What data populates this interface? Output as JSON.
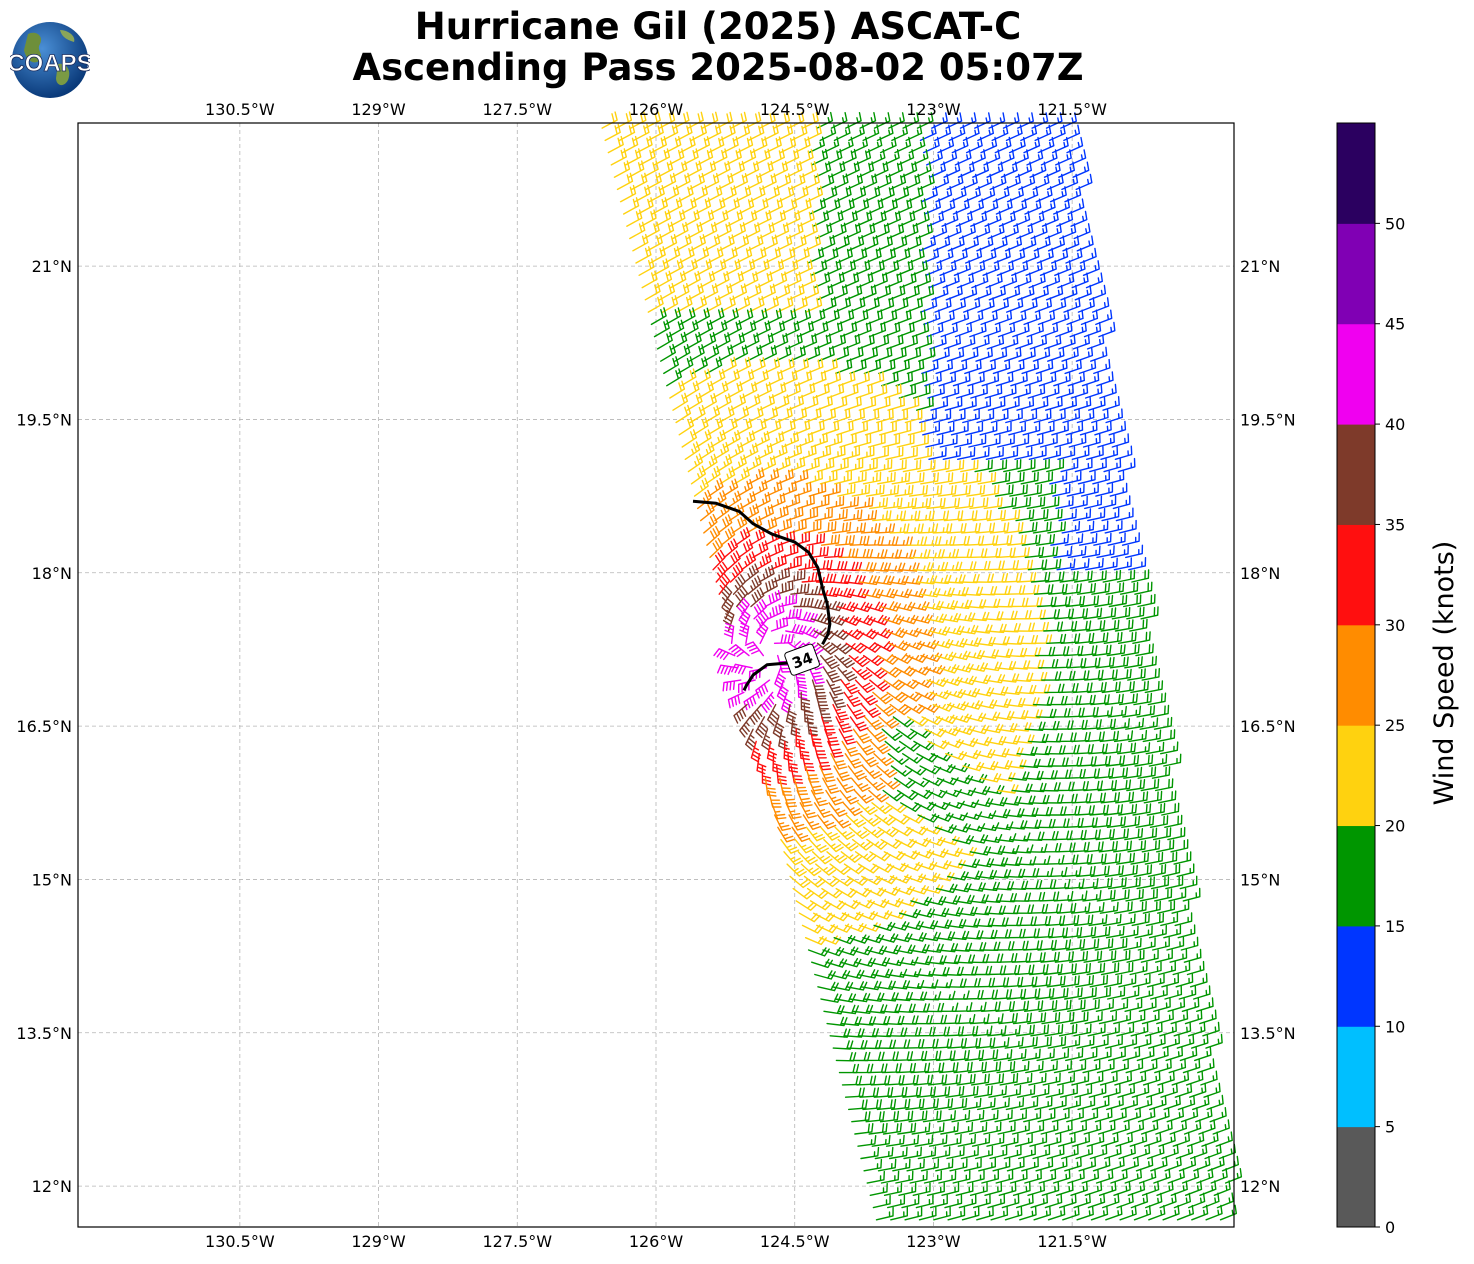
{
  "title": {
    "line1": "Hurricane Gil (2025) ASCAT-C",
    "line2": "Ascending Pass 2025-08-02 05:07Z"
  },
  "logo": {
    "text": "COAPS",
    "icon": "globe-logo-icon"
  },
  "map": {
    "lon_range": [
      -132.25,
      -119.75
    ],
    "lat_range": [
      11.6,
      22.4
    ],
    "lon_ticks": [
      {
        "value": -130.5,
        "label": "130.5°W"
      },
      {
        "value": -129.0,
        "label": "129°W"
      },
      {
        "value": -127.5,
        "label": "127.5°W"
      },
      {
        "value": -126.0,
        "label": "126°W"
      },
      {
        "value": -124.5,
        "label": "124.5°W"
      },
      {
        "value": -123.0,
        "label": "123°W"
      },
      {
        "value": -121.5,
        "label": "121.5°W"
      }
    ],
    "lat_ticks": [
      {
        "value": 21.0,
        "label": "21°N"
      },
      {
        "value": 19.5,
        "label": "19.5°N"
      },
      {
        "value": 18.0,
        "label": "18°N"
      },
      {
        "value": 16.5,
        "label": "16.5°N"
      },
      {
        "value": 15.0,
        "label": "15°N"
      },
      {
        "value": 13.5,
        "label": "13.5°N"
      },
      {
        "value": 12.0,
        "label": "12°N"
      }
    ],
    "gridlines": true,
    "storm_center": {
      "lon": -124.8,
      "lat": 17.2
    },
    "swath": {
      "left_edge_top_lon": -126.7,
      "left_edge_bottom_lon": -123.7,
      "right_edge_top_lon": -121.6,
      "right_edge_bottom_lon": -119.8
    },
    "contour": {
      "label": "34",
      "label_at": {
        "lon": -124.42,
        "lat": 17.15
      },
      "points": [
        {
          "lon": -125.6,
          "lat": 18.7
        },
        {
          "lon": -125.35,
          "lat": 18.68
        },
        {
          "lon": -125.1,
          "lat": 18.6
        },
        {
          "lon": -124.95,
          "lat": 18.48
        },
        {
          "lon": -124.75,
          "lat": 18.38
        },
        {
          "lon": -124.5,
          "lat": 18.3
        },
        {
          "lon": -124.35,
          "lat": 18.2
        },
        {
          "lon": -124.25,
          "lat": 18.05
        },
        {
          "lon": -124.2,
          "lat": 17.85
        },
        {
          "lon": -124.15,
          "lat": 17.7
        },
        {
          "lon": -124.12,
          "lat": 17.5
        },
        {
          "lon": -124.14,
          "lat": 17.4
        },
        {
          "lon": -124.2,
          "lat": 17.3
        }
      ],
      "points_lower": [
        {
          "lon": -124.55,
          "lat": 17.12
        },
        {
          "lon": -124.8,
          "lat": 17.1
        },
        {
          "lon": -124.95,
          "lat": 17.0
        },
        {
          "lon": -125.02,
          "lat": 16.9
        },
        {
          "lon": -125.05,
          "lat": 16.85
        }
      ]
    }
  },
  "colorbar": {
    "label": "Wind Speed (knots)",
    "bins": [
      {
        "min": 0,
        "max": 5,
        "color": "#595959"
      },
      {
        "min": 5,
        "max": 10,
        "color": "#00bfff"
      },
      {
        "min": 10,
        "max": 15,
        "color": "#0036ff"
      },
      {
        "min": 15,
        "max": 20,
        "color": "#009600"
      },
      {
        "min": 20,
        "max": 25,
        "color": "#ffd20f"
      },
      {
        "min": 25,
        "max": 30,
        "color": "#ff8c00"
      },
      {
        "min": 30,
        "max": 35,
        "color": "#ff0f0f"
      },
      {
        "min": 35,
        "max": 40,
        "color": "#7e3a2a"
      },
      {
        "min": 40,
        "max": 45,
        "color": "#f000f0"
      },
      {
        "min": 45,
        "max": 50,
        "color": "#8000b4"
      },
      {
        "min": 50,
        "max": 55,
        "color": "#2b0060"
      }
    ],
    "ticks": [
      {
        "value": 0,
        "label": "0"
      },
      {
        "value": 5,
        "label": "5"
      },
      {
        "value": 10,
        "label": "10"
      },
      {
        "value": 15,
        "label": "15"
      },
      {
        "value": 20,
        "label": "20"
      },
      {
        "value": 25,
        "label": "25"
      },
      {
        "value": 30,
        "label": "30"
      },
      {
        "value": 35,
        "label": "35"
      },
      {
        "value": 40,
        "label": "40"
      },
      {
        "value": 45,
        "label": "45"
      },
      {
        "value": 50,
        "label": "50"
      }
    ]
  }
}
